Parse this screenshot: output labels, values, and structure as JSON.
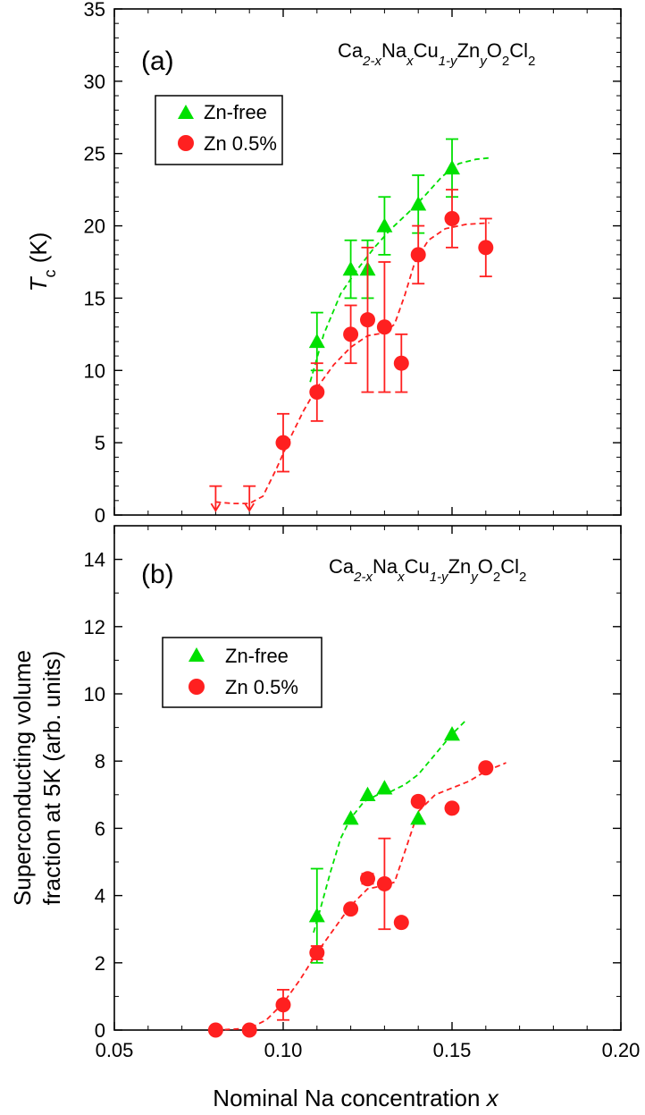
{
  "chart_data": [
    {
      "type": "scatter",
      "panel_label": "(a)",
      "formula": {
        "parts": [
          "Ca",
          "2-x",
          "Na",
          "x",
          "Cu",
          "1-y",
          "Zn",
          "y",
          "O",
          "2",
          "Cl",
          "2"
        ]
      },
      "ylabel": {
        "symbol": "T",
        "subscript": "c",
        "unit": "(K)"
      },
      "ylim": [
        0,
        35
      ],
      "yticks": [
        0,
        5,
        10,
        15,
        20,
        25,
        30,
        35
      ],
      "xlim": [
        0.05,
        0.2
      ],
      "grid": false,
      "legend": {
        "position": "upper-left",
        "entries": [
          "Zn-free",
          "Zn 0.5%"
        ]
      },
      "series": [
        {
          "name": "Zn-free",
          "marker": "triangle",
          "color": "#00e000",
          "points": [
            {
              "x": 0.11,
              "y": 12,
              "err": 2
            },
            {
              "x": 0.12,
              "y": 17,
              "err": 2
            },
            {
              "x": 0.125,
              "y": 17,
              "err": 2
            },
            {
              "x": 0.13,
              "y": 20,
              "err": 2
            },
            {
              "x": 0.14,
              "y": 21.5,
              "err": 2
            },
            {
              "x": 0.15,
              "y": 24,
              "err": 2
            }
          ],
          "trend": [
            [
              0.108,
              9.2
            ],
            [
              0.112,
              12.5
            ],
            [
              0.117,
              15.3
            ],
            [
              0.122,
              17.0
            ],
            [
              0.127,
              18.5
            ],
            [
              0.132,
              19.8
            ],
            [
              0.137,
              20.9
            ],
            [
              0.142,
              22.1
            ],
            [
              0.147,
              23.4
            ],
            [
              0.152,
              24.3
            ],
            [
              0.157,
              24.6
            ],
            [
              0.161,
              24.7
            ]
          ]
        },
        {
          "name": "Zn 0.5%",
          "marker": "circle",
          "color": "#ff2020",
          "points": [
            {
              "x": 0.1,
              "y": 5,
              "err": 2
            },
            {
              "x": 0.11,
              "y": 8.5,
              "err": 2
            },
            {
              "x": 0.12,
              "y": 12.5,
              "err": 2
            },
            {
              "x": 0.125,
              "y": 13.5,
              "err": 5
            },
            {
              "x": 0.13,
              "y": 13,
              "err": 4.5
            },
            {
              "x": 0.135,
              "y": 10.5,
              "err": 2
            },
            {
              "x": 0.14,
              "y": 18,
              "err": 2
            },
            {
              "x": 0.15,
              "y": 20.5,
              "err": 2
            },
            {
              "x": 0.16,
              "y": 18.5,
              "err": 2
            }
          ],
          "upper_limits": [
            {
              "x": 0.08,
              "y": 2
            },
            {
              "x": 0.09,
              "y": 2
            }
          ],
          "trend": [
            [
              0.08,
              0.9
            ],
            [
              0.085,
              0.8
            ],
            [
              0.09,
              0.8
            ],
            [
              0.094,
              1.3
            ],
            [
              0.098,
              3.2
            ],
            [
              0.102,
              5.3
            ],
            [
              0.106,
              7.2
            ],
            [
              0.11,
              8.8
            ],
            [
              0.115,
              10.4
            ],
            [
              0.12,
              11.6
            ],
            [
              0.125,
              12.4
            ],
            [
              0.13,
              12.6
            ],
            [
              0.133,
              13.2
            ],
            [
              0.136,
              15.2
            ],
            [
              0.139,
              17.5
            ],
            [
              0.143,
              19.0
            ],
            [
              0.148,
              19.8
            ],
            [
              0.154,
              20.1
            ],
            [
              0.161,
              20.2
            ]
          ]
        }
      ]
    },
    {
      "type": "scatter",
      "panel_label": "(b)",
      "formula": {
        "parts": [
          "Ca",
          "2-x",
          "Na",
          "x",
          "Cu",
          "1-y",
          "Zn",
          "y",
          "O",
          "2",
          "Cl",
          "2"
        ]
      },
      "ylabel_lines": [
        "Superconducting volume",
        "fraction at 5K (arb. units)"
      ],
      "ylim": [
        0,
        15
      ],
      "yticks": [
        0,
        2,
        4,
        6,
        8,
        10,
        12,
        14
      ],
      "xlim": [
        0.05,
        0.2
      ],
      "xticks": [
        0.05,
        0.1,
        0.15,
        0.2
      ],
      "xtick_labels": [
        "0.05",
        "0.10",
        "0.15",
        "0.20"
      ],
      "xlabel": {
        "text": "Nominal Na concentration ",
        "variable": "x"
      },
      "grid": false,
      "legend": {
        "position": "upper-left",
        "entries": [
          "Zn-free",
          "Zn 0.5%"
        ]
      },
      "series": [
        {
          "name": "Zn-free",
          "marker": "triangle",
          "color": "#00e000",
          "points": [
            {
              "x": 0.11,
              "y": 3.4,
              "err": 1.4
            },
            {
              "x": 0.12,
              "y": 6.3
            },
            {
              "x": 0.125,
              "y": 7.0
            },
            {
              "x": 0.13,
              "y": 7.2
            },
            {
              "x": 0.14,
              "y": 6.3
            },
            {
              "x": 0.15,
              "y": 8.8
            }
          ],
          "trend": [
            [
              0.109,
              2.9
            ],
            [
              0.111,
              3.6
            ],
            [
              0.114,
              4.7
            ],
            [
              0.117,
              5.7
            ],
            [
              0.12,
              6.3
            ],
            [
              0.124,
              6.8
            ],
            [
              0.128,
              7.0
            ],
            [
              0.132,
              7.1
            ],
            [
              0.136,
              7.3
            ],
            [
              0.14,
              7.6
            ],
            [
              0.145,
              8.2
            ],
            [
              0.15,
              8.8
            ],
            [
              0.154,
              9.2
            ]
          ]
        },
        {
          "name": "Zn 0.5%",
          "marker": "circle",
          "color": "#ff2020",
          "points": [
            {
              "x": 0.08,
              "y": 0
            },
            {
              "x": 0.09,
              "y": 0
            },
            {
              "x": 0.1,
              "y": 0.75,
              "err": 0.45
            },
            {
              "x": 0.11,
              "y": 2.3,
              "err": 0.2
            },
            {
              "x": 0.12,
              "y": 3.6
            },
            {
              "x": 0.125,
              "y": 4.5,
              "err": 0.15
            },
            {
              "x": 0.13,
              "y": 4.35,
              "err": 1.35
            },
            {
              "x": 0.135,
              "y": 3.2
            },
            {
              "x": 0.14,
              "y": 6.8
            },
            {
              "x": 0.15,
              "y": 6.6
            },
            {
              "x": 0.16,
              "y": 7.8
            }
          ],
          "trend": [
            [
              0.08,
              0.0
            ],
            [
              0.09,
              0.05
            ],
            [
              0.095,
              0.3
            ],
            [
              0.1,
              0.8
            ],
            [
              0.105,
              1.5
            ],
            [
              0.11,
              2.3
            ],
            [
              0.115,
              3.0
            ],
            [
              0.12,
              3.7
            ],
            [
              0.125,
              4.2
            ],
            [
              0.13,
              4.3
            ],
            [
              0.133,
              4.4
            ],
            [
              0.136,
              5.3
            ],
            [
              0.14,
              6.5
            ],
            [
              0.145,
              7.0
            ],
            [
              0.15,
              7.2
            ],
            [
              0.155,
              7.4
            ],
            [
              0.16,
              7.7
            ],
            [
              0.166,
              7.95
            ]
          ]
        }
      ]
    }
  ]
}
